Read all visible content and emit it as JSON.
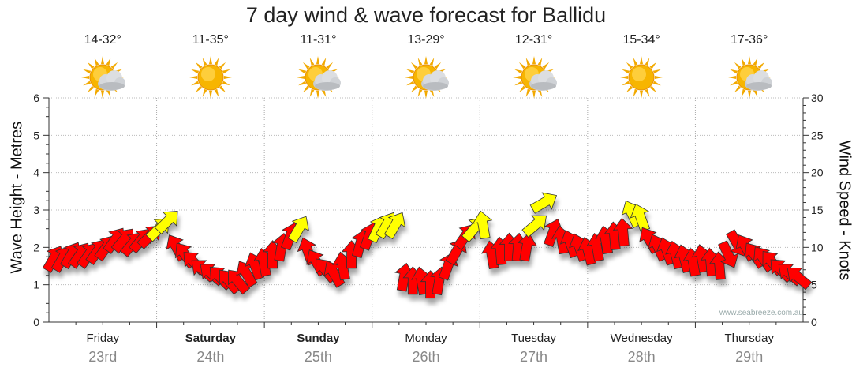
{
  "title": "7 day wind & wave forecast for Ballidu",
  "watermark": "www.seabreeze.com.au",
  "days": [
    {
      "day": "Friday",
      "date": "23rd",
      "temp": "14-32°",
      "bold": false,
      "icon": "partly-cloudy-icon"
    },
    {
      "day": "Saturday",
      "date": "24th",
      "temp": "11-35°",
      "bold": true,
      "icon": "sunny-icon"
    },
    {
      "day": "Sunday",
      "date": "25th",
      "temp": "11-31°",
      "bold": true,
      "icon": "partly-cloudy-icon"
    },
    {
      "day": "Monday",
      "date": "26th",
      "temp": "13-29°",
      "bold": false,
      "icon": "partly-cloudy-icon"
    },
    {
      "day": "Tuesday",
      "date": "27th",
      "temp": "12-31°",
      "bold": false,
      "icon": "partly-cloudy-icon"
    },
    {
      "day": "Wednesday",
      "date": "28th",
      "temp": "15-34°",
      "bold": false,
      "icon": "sunny-icon"
    },
    {
      "day": "Thursday",
      "date": "29th",
      "temp": "17-36°",
      "bold": false,
      "icon": "partly-cloudy-icon"
    }
  ],
  "chart_data": {
    "type": "line",
    "title": "7 day wind & wave forecast for Ballidu",
    "ylabel_left": "Wave Height - Metres",
    "ylabel_right": "Wind Speed - Knots",
    "ylim_left": [
      0,
      6
    ],
    "ylim_right": [
      0,
      30
    ],
    "yticks_left": [
      "0",
      "1",
      "2",
      "3",
      "4",
      "5",
      "6"
    ],
    "yticks_right": [
      "0",
      "5",
      "10",
      "15",
      "20",
      "25",
      "30"
    ],
    "grid": true,
    "colors": {
      "strong": "#ff0000",
      "moderate": "#ffff00",
      "outline": "#333333"
    },
    "series": [
      {
        "name": "Wind Speed",
        "unit": "knots",
        "values": [
          8.5,
          8.5,
          9,
          9,
          9,
          9.5,
          10,
          11,
          11,
          10.5,
          11,
          11.5,
          12.5,
          13.5,
          10,
          9,
          8,
          7,
          6.5,
          6,
          5.5,
          5.5,
          6.5,
          7.5,
          8,
          9,
          10,
          11.5,
          12.5,
          9.5,
          8,
          7,
          6.5,
          7.5,
          9,
          10.5,
          11.5,
          12.5,
          13,
          13,
          6,
          5.5,
          5.5,
          5,
          5.5,
          7.5,
          9.5,
          11.5,
          12.5,
          13,
          9,
          9.5,
          10,
          10,
          10,
          13,
          16,
          12,
          11,
          10.5,
          10,
          9.5,
          10,
          11,
          11.5,
          12,
          14.5,
          14,
          11,
          10,
          9.5,
          9,
          8.5,
          8,
          8.5,
          8,
          7.5,
          9,
          10.5,
          10,
          9,
          8.5,
          8,
          7,
          6.5,
          6
        ],
        "directions": [
          60,
          60,
          60,
          55,
          55,
          55,
          55,
          55,
          50,
          50,
          50,
          45,
          45,
          45,
          120,
          125,
          135,
          140,
          140,
          135,
          130,
          130,
          120,
          110,
          100,
          90,
          80,
          70,
          60,
          110,
          120,
          130,
          120,
          100,
          90,
          75,
          70,
          65,
          60,
          60,
          80,
          90,
          100,
          90,
          80,
          70,
          60,
          55,
          50,
          100,
          100,
          95,
          90,
          85,
          80,
          40,
          30,
          70,
          100,
          110,
          110,
          105,
          100,
          100,
          95,
          95,
          115,
          110,
          120,
          115,
          110,
          105,
          105,
          100,
          100,
          95,
          95,
          295,
          300,
          120,
          125,
          125,
          130,
          135,
          140,
          140
        ]
      }
    ]
  }
}
